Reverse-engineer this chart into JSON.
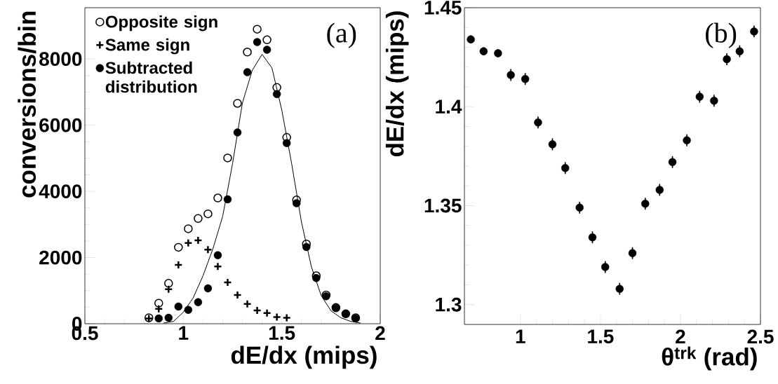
{
  "chart_data": [
    {
      "type": "scatter",
      "xlabel": "dE/dx (mips)",
      "ylabel": "conversions/bin",
      "annotations": [
        "(a)"
      ],
      "legend": "top left",
      "xlim": [
        0.5,
        2.0
      ],
      "ylim": [
        0,
        9550
      ],
      "xticks": [
        0.5,
        1,
        1.5,
        2
      ],
      "yticks": [
        0,
        2000,
        4000,
        6000,
        8000
      ],
      "series": [
        {
          "name": "Opposite sign",
          "color": "#000000",
          "marker": "circle_open",
          "x": [
            0.825,
            0.875,
            0.925,
            0.975,
            1.025,
            1.075,
            1.125,
            1.175,
            1.225,
            1.275,
            1.325,
            1.375,
            1.425,
            1.475,
            1.525,
            1.575,
            1.625,
            1.675,
            1.725,
            1.775,
            1.825,
            1.875
          ],
          "values": [
            180,
            620,
            1220,
            2310,
            2870,
            3180,
            3320,
            3800,
            5010,
            6660,
            8210,
            8900,
            8580,
            7140,
            5630,
            3740,
            2410,
            1450,
            870,
            490,
            300,
            180
          ]
        },
        {
          "name": "Same sign",
          "color": "#000000",
          "marker": "cross",
          "x": [
            0.825,
            0.875,
            0.925,
            0.975,
            1.025,
            1.075,
            1.125,
            1.175,
            1.225,
            1.275,
            1.325,
            1.375,
            1.425,
            1.475,
            1.525
          ],
          "values": [
            160,
            450,
            1040,
            1780,
            2440,
            2520,
            2240,
            1730,
            1250,
            870,
            600,
            400,
            320,
            200,
            180
          ]
        },
        {
          "name": "Subtracted distribution",
          "color": "#000000",
          "marker": "circle",
          "x": [
            0.875,
            0.925,
            0.975,
            1.025,
            1.075,
            1.125,
            1.175,
            1.225,
            1.275,
            1.325,
            1.375,
            1.425,
            1.475,
            1.525,
            1.575,
            1.625,
            1.675,
            1.725,
            1.775,
            1.825,
            1.875
          ],
          "values": [
            160,
            180,
            520,
            420,
            650,
            1070,
            2070,
            3760,
            5780,
            7600,
            8510,
            8280,
            6940,
            5460,
            3640,
            2320,
            1380,
            830,
            470,
            300,
            160
          ]
        },
        {
          "type": "line",
          "color": "#000000",
          "marker": "none",
          "x": [
            0.9,
            0.95,
            1.0,
            1.05,
            1.1,
            1.15,
            1.2,
            1.25,
            1.3,
            1.35,
            1.4,
            1.45,
            1.5,
            1.55,
            1.6,
            1.65,
            1.7,
            1.75,
            1.8,
            1.85,
            1.9
          ],
          "values": [
            20,
            70,
            350,
            780,
            1450,
            2260,
            3250,
            4840,
            6670,
            7660,
            8140,
            7730,
            6460,
            4840,
            3070,
            1730,
            850,
            390,
            180,
            70,
            20
          ]
        }
      ]
    },
    {
      "type": "scatter",
      "xlabel": "θ$^{trk}$ (rad)",
      "ylabel": "dE/dx (mips)",
      "annotations": [
        "(b)"
      ],
      "xlim": [
        0.65,
        2.5
      ],
      "ylim": [
        1.29,
        1.45
      ],
      "xticks": [
        1,
        1.5,
        2,
        2.5
      ],
      "yticks": [
        1.3,
        1.35,
        1.4,
        1.45
      ],
      "series": [
        {
          "color": "#000000",
          "marker": "circle",
          "x": [
            0.69,
            0.77,
            0.86,
            0.94,
            1.03,
            1.11,
            1.2,
            1.28,
            1.37,
            1.45,
            1.53,
            1.62,
            1.7,
            1.78,
            1.87,
            1.95,
            2.04,
            2.12,
            2.21,
            2.29,
            2.37,
            2.46
          ],
          "values": [
            1.434,
            1.428,
            1.427,
            1.416,
            1.414,
            1.392,
            1.381,
            1.369,
            1.349,
            1.334,
            1.319,
            1.308,
            1.326,
            1.351,
            1.358,
            1.372,
            1.383,
            1.405,
            1.403,
            1.424,
            1.428,
            1.438
          ],
          "errors": [
            0.002,
            0.002,
            0.002,
            0.003,
            0.003,
            0.003,
            0.003,
            0.003,
            0.003,
            0.003,
            0.003,
            0.003,
            0.003,
            0.003,
            0.003,
            0.003,
            0.003,
            0.003,
            0.003,
            0.003,
            0.003,
            0.003
          ]
        }
      ]
    }
  ]
}
